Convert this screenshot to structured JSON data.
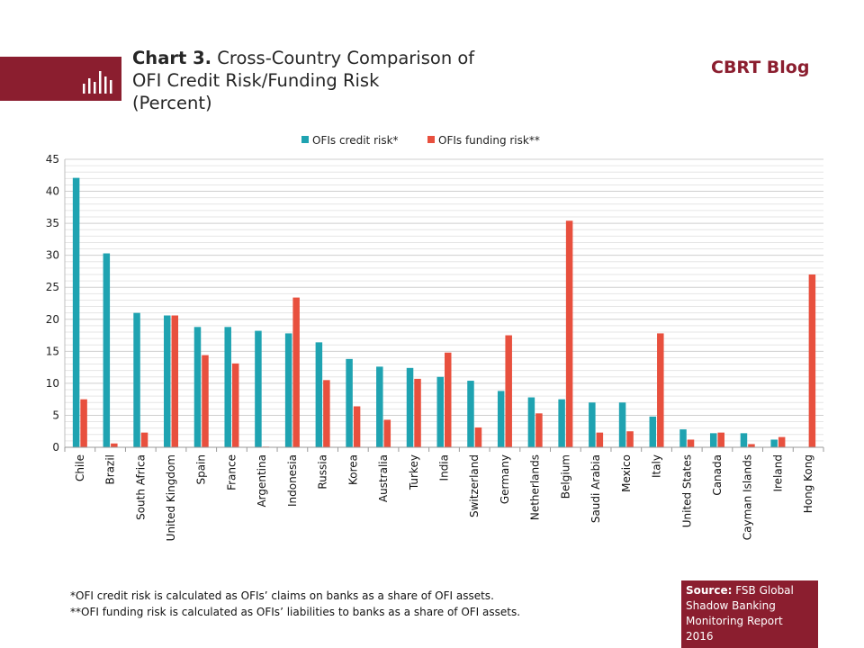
{
  "header": {
    "title_prefix": "Chart 3.",
    "title_line1": "Cross-Country Comparison of",
    "title_line2": "OFI Credit Risk/Funding Risk",
    "title_line3": "(Percent)",
    "blog_name": "CBRT Blog",
    "logo_icon": "bar-chart-icon"
  },
  "colors": {
    "brand": "#8b1e2f",
    "credit": "#1fa3b1",
    "funding": "#e8503e"
  },
  "chart_data": {
    "type": "bar",
    "categories": [
      "Chile",
      "Brazil",
      "South Africa",
      "United Kingdom",
      "Spain",
      "France",
      "Argentina",
      "Indonesia",
      "Russia",
      "Korea",
      "Australia",
      "Turkey",
      "India",
      "Switzerland",
      "Germany",
      "Netherlands",
      "Belgium",
      "Saudi Arabia",
      "Mexico",
      "Italy",
      "United States",
      "Canada",
      "Cayman Islands",
      "Ireland",
      "Hong Kong"
    ],
    "series": [
      {
        "name": "OFIs credit risk*",
        "values": [
          42.1,
          30.3,
          21.0,
          20.6,
          18.8,
          18.8,
          18.2,
          17.8,
          16.4,
          13.8,
          12.6,
          12.4,
          11.0,
          10.4,
          8.8,
          7.8,
          7.5,
          7.0,
          7.0,
          4.8,
          2.8,
          2.2,
          2.2,
          1.2,
          0
        ]
      },
      {
        "name": "OFIs funding risk**",
        "values": [
          7.5,
          0.6,
          2.3,
          20.6,
          14.4,
          13.1,
          0.1,
          23.4,
          10.5,
          6.4,
          4.3,
          10.7,
          14.8,
          3.1,
          17.5,
          5.3,
          35.4,
          2.3,
          2.5,
          17.8,
          1.2,
          2.3,
          0.5,
          1.6,
          27.0
        ]
      }
    ],
    "ylim": [
      0,
      45
    ],
    "yticks": [
      0,
      5,
      10,
      15,
      20,
      25,
      30,
      35,
      40,
      45
    ],
    "legend_position": "top-center",
    "grid": true
  },
  "notes": {
    "line1": "*OFI credit risk is calculated as OFIs’ claims on banks as a share of OFI assets.",
    "line2": "**OFI funding risk is calculated as OFIs’ liabilities to banks as a share of OFI assets."
  },
  "source": {
    "label": "Source:",
    "text1": "FSB Global",
    "text2": "Shadow Banking",
    "text3": "Monitoring Report",
    "text4": "2016"
  }
}
